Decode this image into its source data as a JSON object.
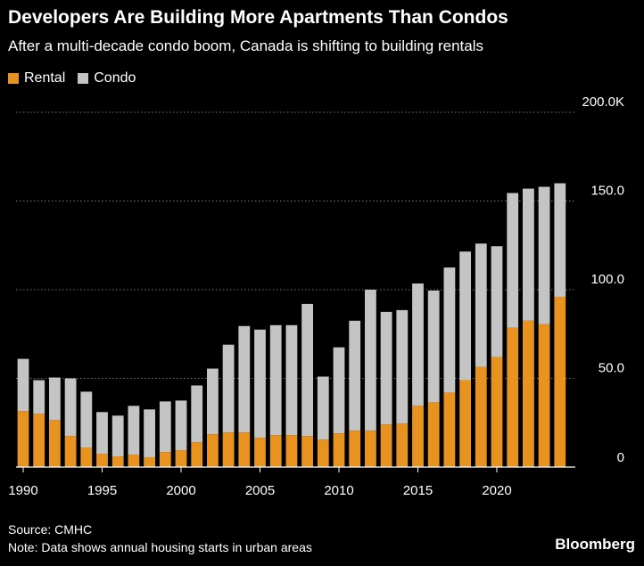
{
  "header": {
    "title": "Developers Are Building More Apartments Than Condos",
    "subtitle": "After a multi-decade condo boom, Canada is shifting to building rentals"
  },
  "legend": [
    {
      "label": "Rental",
      "color": "#e8921f"
    },
    {
      "label": "Condo",
      "color": "#c4c4c4"
    }
  ],
  "chart_data": {
    "type": "bar",
    "stacked": true,
    "title": "Developers Are Building More Apartments Than Condos",
    "subtitle": "After a multi-decade condo boom, Canada is shifting to building rentals",
    "xlabel": "",
    "ylabel": "",
    "ylim": [
      0,
      200
    ],
    "y_ticks": [
      {
        "value": 0,
        "label": "0"
      },
      {
        "value": 50,
        "label": "50.0"
      },
      {
        "value": 100,
        "label": "100.0"
      },
      {
        "value": 150,
        "label": "150.0"
      },
      {
        "value": 200,
        "label": "200.0K"
      }
    ],
    "x_ticks": [
      {
        "value": 1990,
        "label": "1990"
      },
      {
        "value": 1995,
        "label": "1995"
      },
      {
        "value": 2000,
        "label": "2000"
      },
      {
        "value": 2005,
        "label": "2005"
      },
      {
        "value": 2010,
        "label": "2010"
      },
      {
        "value": 2015,
        "label": "2015"
      },
      {
        "value": 2020,
        "label": "2020"
      }
    ],
    "categories": [
      1990,
      1991,
      1992,
      1993,
      1994,
      1995,
      1996,
      1997,
      1998,
      1999,
      2000,
      2001,
      2002,
      2003,
      2004,
      2005,
      2006,
      2007,
      2008,
      2009,
      2010,
      2011,
      2012,
      2013,
      2014,
      2015,
      2016,
      2017,
      2018,
      2019,
      2020,
      2021,
      2022,
      2023,
      2024
    ],
    "series": [
      {
        "name": "Rental",
        "color": "#e8921f",
        "values": [
          31.5,
          30.0,
          26.5,
          17.5,
          11.0,
          7.5,
          6.0,
          7.0,
          5.5,
          8.5,
          9.5,
          14.0,
          18.5,
          19.5,
          19.5,
          16.5,
          18.0,
          18.0,
          17.5,
          15.5,
          19.0,
          20.5,
          20.5,
          24.0,
          24.5,
          34.5,
          36.5,
          42.0,
          49.0,
          56.5,
          62.0,
          78.5,
          82.5,
          80.5,
          96.0
        ]
      },
      {
        "name": "Condo",
        "color": "#c4c4c4",
        "values": [
          29.5,
          19.0,
          24.0,
          32.5,
          31.5,
          23.5,
          23.0,
          27.5,
          27.0,
          28.5,
          28.0,
          32.0,
          37.0,
          49.5,
          60.0,
          61.0,
          62.0,
          62.0,
          74.5,
          35.5,
          48.5,
          62.0,
          79.5,
          63.5,
          64.0,
          69.0,
          63.0,
          70.5,
          72.5,
          69.5,
          62.5,
          76.0,
          74.5,
          77.5,
          64.0
        ]
      }
    ],
    "grid": true,
    "legend_position": "top-left"
  },
  "footer": {
    "source": "Source: CMHC",
    "note": "Note: Data shows annual housing starts in urban areas",
    "brand": "Bloomberg"
  }
}
